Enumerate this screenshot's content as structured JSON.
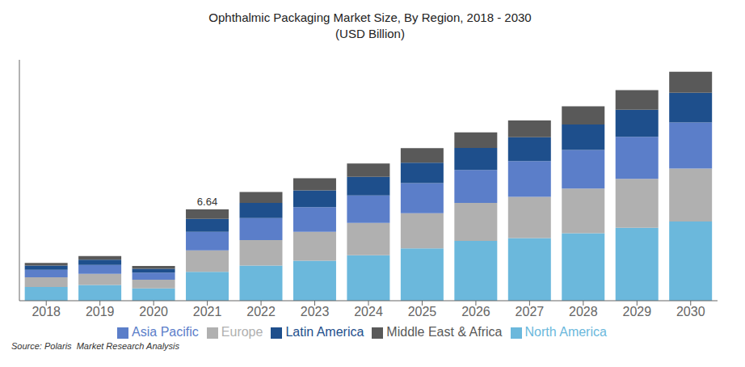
{
  "chart_data": {
    "type": "bar",
    "title": "Ophthalmic Packaging Market Size, By Region, 2018 - 2030",
    "subtitle": "(USD Billion)",
    "source": "Source: Polaris  Market Research Analysis",
    "categories": [
      "2018",
      "2019",
      "2020",
      "2021",
      "2022",
      "2023",
      "2024",
      "2025",
      "2026",
      "2027",
      "2028",
      "2029",
      "2030"
    ],
    "series": [
      {
        "name": "North America",
        "color": "#6BB8DC",
        "values": [
          1.0,
          1.15,
          0.9,
          2.1,
          2.55,
          2.9,
          3.3,
          3.8,
          4.35,
          4.55,
          4.9,
          5.3,
          5.75
        ]
      },
      {
        "name": "Europe",
        "color": "#B0B0B0",
        "values": [
          0.7,
          0.8,
          0.62,
          1.55,
          1.85,
          2.1,
          2.35,
          2.55,
          2.75,
          3.0,
          3.25,
          3.55,
          3.85
        ]
      },
      {
        "name": "Asia Pacific",
        "color": "#5B7EC9",
        "values": [
          0.55,
          0.65,
          0.52,
          1.35,
          1.6,
          1.8,
          2.0,
          2.2,
          2.4,
          2.6,
          2.8,
          3.05,
          3.35
        ]
      },
      {
        "name": "Latin America",
        "color": "#1E4F8C",
        "values": [
          0.3,
          0.38,
          0.28,
          0.95,
          1.1,
          1.22,
          1.35,
          1.48,
          1.6,
          1.72,
          1.85,
          1.98,
          2.15
        ]
      },
      {
        "name": "Middle East & Africa",
        "color": "#595959",
        "values": [
          0.2,
          0.27,
          0.2,
          0.69,
          0.8,
          0.88,
          0.97,
          1.05,
          1.13,
          1.22,
          1.32,
          1.42,
          1.54
        ]
      }
    ],
    "annotations": [
      {
        "text": "6.64",
        "category": "2021"
      }
    ],
    "ylim": [
      0,
      17.5
    ],
    "stacked": true,
    "grid": false,
    "legend": "bottom",
    "tick_labels": "x"
  }
}
